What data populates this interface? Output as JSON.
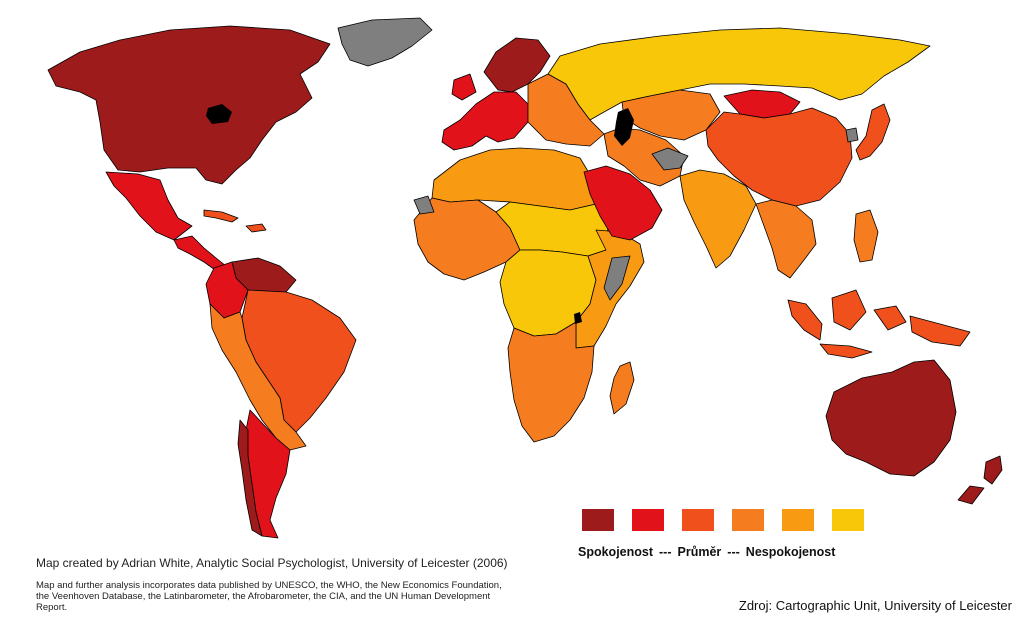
{
  "legend": {
    "label_high": "Spokojenost",
    "sep1": "---",
    "label_mid": "Průměr",
    "sep2": "---",
    "label_low": "Nespokojenost",
    "colors": [
      "#9e1b1b",
      "#e2121b",
      "#f0511c",
      "#f57d1f",
      "#f89a12",
      "#f9c70a"
    ]
  },
  "credit": "Map created by Adrian White, Analytic Social Psychologist, University of Leicester (2006)",
  "note": "Map and further analysis incorporates data published by UNESCO, the WHO, the New Economics Foundation, the Veenhoven Database, the Latinbarometer, the Afrobarometer, the CIA, and the UN Human Development Report.",
  "source": "Zdroj: Cartographic Unit, University of Leicester",
  "colors": {
    "nodata": "#7f7f7f",
    "water": "#000000"
  },
  "regions": [
    {
      "name": "north-america-region",
      "level": 1
    },
    {
      "name": "greenland-region",
      "level": 0
    },
    {
      "name": "mexico-region",
      "level": 2
    },
    {
      "name": "central-america-region",
      "level": 2
    },
    {
      "name": "caribbean-region",
      "level": 3
    },
    {
      "name": "venezuela-region",
      "level": 1
    },
    {
      "name": "colombia-region",
      "level": 2
    },
    {
      "name": "brazil-region",
      "level": 3
    },
    {
      "name": "andes-region",
      "level": 4
    },
    {
      "name": "argentina-region",
      "level": 2
    },
    {
      "name": "chile-region",
      "level": 1
    },
    {
      "name": "western-europe-region",
      "level": 2
    },
    {
      "name": "scandinavia-region",
      "level": 1
    },
    {
      "name": "eastern-europe-region",
      "level": 4
    },
    {
      "name": "russia-region",
      "level": 6
    },
    {
      "name": "north-africa-region",
      "level": 5
    },
    {
      "name": "sahel-region",
      "level": 6
    },
    {
      "name": "west-africa-region",
      "level": 4
    },
    {
      "name": "central-africa-region",
      "level": 6
    },
    {
      "name": "east-africa-region",
      "level": 5
    },
    {
      "name": "southern-africa-region",
      "level": 4
    },
    {
      "name": "madagascar-region",
      "level": 4
    },
    {
      "name": "arabia-region",
      "level": 2
    },
    {
      "name": "middle-east-region",
      "level": 4
    },
    {
      "name": "central-asia-region",
      "level": 4
    },
    {
      "name": "india-region",
      "level": 5
    },
    {
      "name": "china-region",
      "level": 3
    },
    {
      "name": "mongolia-region",
      "level": 2
    },
    {
      "name": "japan-region",
      "level": 3
    },
    {
      "name": "southeast-asia-region",
      "level": 4
    },
    {
      "name": "indonesia-region",
      "level": 3
    },
    {
      "name": "australia-region",
      "level": 1
    },
    {
      "name": "new-zealand-region",
      "level": 1
    }
  ]
}
